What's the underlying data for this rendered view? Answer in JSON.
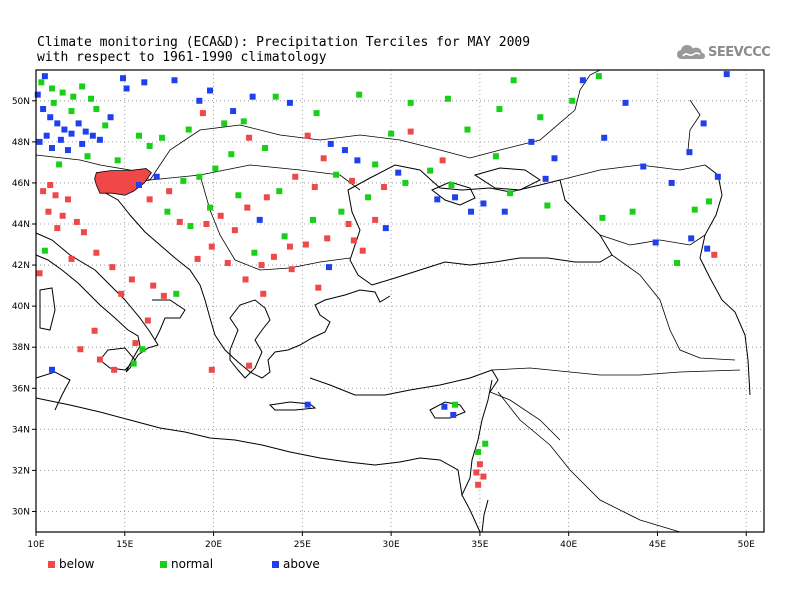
{
  "title": {
    "line1": "Climate monitoring (ECA&D): Precipitation Terciles for MAY 2009",
    "line2": "with respect to 1961-1990 climatology"
  },
  "logo": {
    "text": "SEEVCCC",
    "icon": "cloud-icon"
  },
  "map": {
    "lon_range": [
      10,
      51
    ],
    "lat_range": [
      29,
      51.5
    ],
    "x_ticks": [
      {
        "v": 10,
        "label": "10E"
      },
      {
        "v": 15,
        "label": "15E"
      },
      {
        "v": 20,
        "label": "20E"
      },
      {
        "v": 25,
        "label": "25E"
      },
      {
        "v": 30,
        "label": "30E"
      },
      {
        "v": 35,
        "label": "35E"
      },
      {
        "v": 40,
        "label": "40E"
      },
      {
        "v": 45,
        "label": "45E"
      },
      {
        "v": 50,
        "label": "50E"
      }
    ],
    "y_ticks": [
      {
        "v": 30,
        "label": "30N"
      },
      {
        "v": 32,
        "label": "32N"
      },
      {
        "v": 34,
        "label": "34N"
      },
      {
        "v": 36,
        "label": "36N"
      },
      {
        "v": 38,
        "label": "38N"
      },
      {
        "v": 40,
        "label": "40N"
      },
      {
        "v": 42,
        "label": "42N"
      },
      {
        "v": 44,
        "label": "44N"
      },
      {
        "v": 46,
        "label": "46N"
      },
      {
        "v": 48,
        "label": "48N"
      },
      {
        "v": 50,
        "label": "50N"
      }
    ],
    "grid": "dotted",
    "categories": {
      "below": "#f04848",
      "normal": "#18d018",
      "above": "#2040f0"
    },
    "stations": [
      {
        "lon": 10.1,
        "lat": 50.3,
        "c": "above"
      },
      {
        "lon": 10.4,
        "lat": 49.6,
        "c": "above"
      },
      {
        "lon": 10.8,
        "lat": 49.2,
        "c": "above"
      },
      {
        "lon": 11.2,
        "lat": 48.9,
        "c": "above"
      },
      {
        "lon": 11.6,
        "lat": 48.6,
        "c": "above"
      },
      {
        "lon": 12.0,
        "lat": 48.4,
        "c": "above"
      },
      {
        "lon": 10.6,
        "lat": 48.3,
        "c": "above"
      },
      {
        "lon": 11.4,
        "lat": 48.1,
        "c": "above"
      },
      {
        "lon": 10.2,
        "lat": 48.0,
        "c": "above"
      },
      {
        "lon": 12.4,
        "lat": 48.9,
        "c": "above"
      },
      {
        "lon": 12.8,
        "lat": 48.5,
        "c": "above"
      },
      {
        "lon": 13.2,
        "lat": 48.3,
        "c": "above"
      },
      {
        "lon": 10.9,
        "lat": 47.7,
        "c": "above"
      },
      {
        "lon": 11.8,
        "lat": 47.6,
        "c": "above"
      },
      {
        "lon": 12.6,
        "lat": 47.9,
        "c": "above"
      },
      {
        "lon": 13.6,
        "lat": 48.1,
        "c": "above"
      },
      {
        "lon": 14.2,
        "lat": 49.2,
        "c": "above"
      },
      {
        "lon": 15.1,
        "lat": 50.6,
        "c": "above"
      },
      {
        "lon": 16.1,
        "lat": 50.9,
        "c": "above"
      },
      {
        "lon": 10.5,
        "lat": 51.2,
        "c": "above"
      },
      {
        "lon": 14.9,
        "lat": 51.1,
        "c": "above"
      },
      {
        "lon": 16.8,
        "lat": 46.3,
        "c": "above"
      },
      {
        "lon": 17.8,
        "lat": 51.0,
        "c": "above"
      },
      {
        "lon": 19.2,
        "lat": 50.0,
        "c": "above"
      },
      {
        "lon": 21.1,
        "lat": 49.5,
        "c": "above"
      },
      {
        "lon": 22.2,
        "lat": 50.2,
        "c": "above"
      },
      {
        "lon": 24.3,
        "lat": 49.9,
        "c": "above"
      },
      {
        "lon": 26.6,
        "lat": 47.9,
        "c": "above"
      },
      {
        "lon": 27.4,
        "lat": 47.6,
        "c": "above"
      },
      {
        "lon": 33.6,
        "lat": 45.3,
        "c": "above"
      },
      {
        "lon": 34.5,
        "lat": 44.6,
        "c": "above"
      },
      {
        "lon": 35.2,
        "lat": 45.0,
        "c": "above"
      },
      {
        "lon": 37.9,
        "lat": 48.0,
        "c": "above"
      },
      {
        "lon": 38.7,
        "lat": 46.2,
        "c": "above"
      },
      {
        "lon": 39.2,
        "lat": 47.2,
        "c": "above"
      },
      {
        "lon": 40.8,
        "lat": 51.0,
        "c": "above"
      },
      {
        "lon": 42.0,
        "lat": 48.2,
        "c": "above"
      },
      {
        "lon": 43.2,
        "lat": 49.9,
        "c": "above"
      },
      {
        "lon": 44.2,
        "lat": 46.8,
        "c": "above"
      },
      {
        "lon": 45.8,
        "lat": 46.0,
        "c": "above"
      },
      {
        "lon": 46.8,
        "lat": 47.5,
        "c": "above"
      },
      {
        "lon": 47.6,
        "lat": 48.9,
        "c": "above"
      },
      {
        "lon": 48.4,
        "lat": 46.3,
        "c": "above"
      },
      {
        "lon": 48.9,
        "lat": 51.3,
        "c": "above"
      },
      {
        "lon": 44.9,
        "lat": 43.1,
        "c": "above"
      },
      {
        "lon": 46.9,
        "lat": 43.3,
        "c": "above"
      },
      {
        "lon": 47.8,
        "lat": 42.8,
        "c": "above"
      },
      {
        "lon": 30.4,
        "lat": 46.5,
        "c": "above"
      },
      {
        "lon": 32.6,
        "lat": 45.2,
        "c": "above"
      },
      {
        "lon": 36.4,
        "lat": 44.6,
        "c": "above"
      },
      {
        "lon": 28.1,
        "lat": 47.1,
        "c": "above"
      },
      {
        "lon": 19.8,
        "lat": 50.5,
        "c": "above"
      },
      {
        "lon": 15.8,
        "lat": 45.9,
        "c": "above"
      },
      {
        "lon": 29.7,
        "lat": 43.8,
        "c": "above"
      },
      {
        "lon": 26.5,
        "lat": 41.9,
        "c": "above"
      },
      {
        "lon": 22.6,
        "lat": 44.2,
        "c": "above"
      },
      {
        "lon": 25.3,
        "lat": 35.2,
        "c": "above"
      },
      {
        "lon": 33.0,
        "lat": 35.1,
        "c": "above"
      },
      {
        "lon": 33.5,
        "lat": 34.7,
        "c": "above"
      },
      {
        "lon": 10.9,
        "lat": 36.9,
        "c": "above"
      },
      {
        "lon": 10.3,
        "lat": 50.9,
        "c": "normal"
      },
      {
        "lon": 10.9,
        "lat": 50.6,
        "c": "normal"
      },
      {
        "lon": 11.5,
        "lat": 50.4,
        "c": "normal"
      },
      {
        "lon": 12.1,
        "lat": 50.2,
        "c": "normal"
      },
      {
        "lon": 12.6,
        "lat": 50.7,
        "c": "normal"
      },
      {
        "lon": 13.1,
        "lat": 50.1,
        "c": "normal"
      },
      {
        "lon": 11.0,
        "lat": 49.9,
        "c": "normal"
      },
      {
        "lon": 12.0,
        "lat": 49.5,
        "c": "normal"
      },
      {
        "lon": 13.4,
        "lat": 49.6,
        "c": "normal"
      },
      {
        "lon": 13.9,
        "lat": 48.8,
        "c": "normal"
      },
      {
        "lon": 12.9,
        "lat": 47.3,
        "c": "normal"
      },
      {
        "lon": 11.3,
        "lat": 46.9,
        "c": "normal"
      },
      {
        "lon": 14.6,
        "lat": 47.1,
        "c": "normal"
      },
      {
        "lon": 15.8,
        "lat": 48.3,
        "c": "normal"
      },
      {
        "lon": 16.4,
        "lat": 47.8,
        "c": "normal"
      },
      {
        "lon": 17.1,
        "lat": 48.2,
        "c": "normal"
      },
      {
        "lon": 18.6,
        "lat": 48.6,
        "c": "normal"
      },
      {
        "lon": 18.3,
        "lat": 46.1,
        "c": "normal"
      },
      {
        "lon": 19.2,
        "lat": 46.3,
        "c": "normal"
      },
      {
        "lon": 20.1,
        "lat": 46.7,
        "c": "normal"
      },
      {
        "lon": 21.0,
        "lat": 47.4,
        "c": "normal"
      },
      {
        "lon": 22.9,
        "lat": 47.7,
        "c": "normal"
      },
      {
        "lon": 20.6,
        "lat": 48.9,
        "c": "normal"
      },
      {
        "lon": 21.7,
        "lat": 49.0,
        "c": "normal"
      },
      {
        "lon": 23.5,
        "lat": 50.2,
        "c": "normal"
      },
      {
        "lon": 25.8,
        "lat": 49.4,
        "c": "normal"
      },
      {
        "lon": 28.2,
        "lat": 50.3,
        "c": "normal"
      },
      {
        "lon": 30.0,
        "lat": 48.4,
        "c": "normal"
      },
      {
        "lon": 31.1,
        "lat": 49.9,
        "c": "normal"
      },
      {
        "lon": 33.2,
        "lat": 50.1,
        "c": "normal"
      },
      {
        "lon": 34.3,
        "lat": 48.6,
        "c": "normal"
      },
      {
        "lon": 36.1,
        "lat": 49.6,
        "c": "normal"
      },
      {
        "lon": 36.9,
        "lat": 51.0,
        "c": "normal"
      },
      {
        "lon": 38.4,
        "lat": 49.2,
        "c": "normal"
      },
      {
        "lon": 40.2,
        "lat": 50.0,
        "c": "normal"
      },
      {
        "lon": 41.7,
        "lat": 51.2,
        "c": "normal"
      },
      {
        "lon": 35.9,
        "lat": 47.3,
        "c": "normal"
      },
      {
        "lon": 32.2,
        "lat": 46.6,
        "c": "normal"
      },
      {
        "lon": 30.8,
        "lat": 46.0,
        "c": "normal"
      },
      {
        "lon": 28.7,
        "lat": 45.3,
        "c": "normal"
      },
      {
        "lon": 27.2,
        "lat": 44.6,
        "c": "normal"
      },
      {
        "lon": 25.6,
        "lat": 44.2,
        "c": "normal"
      },
      {
        "lon": 24.0,
        "lat": 43.4,
        "c": "normal"
      },
      {
        "lon": 22.3,
        "lat": 42.6,
        "c": "normal"
      },
      {
        "lon": 21.4,
        "lat": 45.4,
        "c": "normal"
      },
      {
        "lon": 19.8,
        "lat": 44.8,
        "c": "normal"
      },
      {
        "lon": 18.7,
        "lat": 43.9,
        "c": "normal"
      },
      {
        "lon": 17.4,
        "lat": 44.6,
        "c": "normal"
      },
      {
        "lon": 23.7,
        "lat": 45.6,
        "c": "normal"
      },
      {
        "lon": 26.9,
        "lat": 46.4,
        "c": "normal"
      },
      {
        "lon": 29.1,
        "lat": 46.9,
        "c": "normal"
      },
      {
        "lon": 33.4,
        "lat": 45.9,
        "c": "normal"
      },
      {
        "lon": 36.7,
        "lat": 45.5,
        "c": "normal"
      },
      {
        "lon": 38.8,
        "lat": 44.9,
        "c": "normal"
      },
      {
        "lon": 41.9,
        "lat": 44.3,
        "c": "normal"
      },
      {
        "lon": 43.6,
        "lat": 44.6,
        "c": "normal"
      },
      {
        "lon": 47.1,
        "lat": 44.7,
        "c": "normal"
      },
      {
        "lon": 47.9,
        "lat": 45.1,
        "c": "normal"
      },
      {
        "lon": 46.1,
        "lat": 42.1,
        "c": "normal"
      },
      {
        "lon": 16.0,
        "lat": 37.9,
        "c": "normal"
      },
      {
        "lon": 15.5,
        "lat": 37.2,
        "c": "normal"
      },
      {
        "lon": 33.6,
        "lat": 35.2,
        "c": "normal"
      },
      {
        "lon": 34.9,
        "lat": 32.9,
        "c": "normal"
      },
      {
        "lon": 35.3,
        "lat": 33.3,
        "c": "normal"
      },
      {
        "lon": 17.9,
        "lat": 40.6,
        "c": "normal"
      },
      {
        "lon": 10.5,
        "lat": 42.7,
        "c": "normal"
      },
      {
        "lon": 10.4,
        "lat": 45.6,
        "c": "below"
      },
      {
        "lon": 11.1,
        "lat": 45.4,
        "c": "below"
      },
      {
        "lon": 11.8,
        "lat": 45.2,
        "c": "below"
      },
      {
        "lon": 10.7,
        "lat": 44.6,
        "c": "below"
      },
      {
        "lon": 11.5,
        "lat": 44.4,
        "c": "below"
      },
      {
        "lon": 12.3,
        "lat": 44.1,
        "c": "below"
      },
      {
        "lon": 12.7,
        "lat": 43.6,
        "c": "below"
      },
      {
        "lon": 11.2,
        "lat": 43.8,
        "c": "below"
      },
      {
        "lon": 12.0,
        "lat": 42.3,
        "c": "below"
      },
      {
        "lon": 13.4,
        "lat": 42.6,
        "c": "below"
      },
      {
        "lon": 14.3,
        "lat": 41.9,
        "c": "below"
      },
      {
        "lon": 15.4,
        "lat": 41.3,
        "c": "below"
      },
      {
        "lon": 16.6,
        "lat": 41.0,
        "c": "below"
      },
      {
        "lon": 17.2,
        "lat": 40.5,
        "c": "below"
      },
      {
        "lon": 14.8,
        "lat": 40.6,
        "c": "below"
      },
      {
        "lon": 16.3,
        "lat": 39.3,
        "c": "below"
      },
      {
        "lon": 15.6,
        "lat": 38.2,
        "c": "below"
      },
      {
        "lon": 12.5,
        "lat": 37.9,
        "c": "below"
      },
      {
        "lon": 13.6,
        "lat": 37.4,
        "c": "below"
      },
      {
        "lon": 14.4,
        "lat": 36.9,
        "c": "below"
      },
      {
        "lon": 13.3,
        "lat": 38.8,
        "c": "below"
      },
      {
        "lon": 10.2,
        "lat": 41.6,
        "c": "below"
      },
      {
        "lon": 14.3,
        "lat": 45.7,
        "c": "below"
      },
      {
        "lon": 15.1,
        "lat": 46.1,
        "c": "below"
      },
      {
        "lon": 16.4,
        "lat": 45.2,
        "c": "below"
      },
      {
        "lon": 17.5,
        "lat": 45.6,
        "c": "below"
      },
      {
        "lon": 18.1,
        "lat": 44.1,
        "c": "below"
      },
      {
        "lon": 19.6,
        "lat": 44.0,
        "c": "below"
      },
      {
        "lon": 20.4,
        "lat": 44.4,
        "c": "below"
      },
      {
        "lon": 21.2,
        "lat": 43.7,
        "c": "below"
      },
      {
        "lon": 21.9,
        "lat": 44.8,
        "c": "below"
      },
      {
        "lon": 19.9,
        "lat": 42.9,
        "c": "below"
      },
      {
        "lon": 19.1,
        "lat": 42.3,
        "c": "below"
      },
      {
        "lon": 20.8,
        "lat": 42.1,
        "c": "below"
      },
      {
        "lon": 22.7,
        "lat": 42.0,
        "c": "below"
      },
      {
        "lon": 23.4,
        "lat": 42.4,
        "c": "below"
      },
      {
        "lon": 24.3,
        "lat": 42.9,
        "c": "below"
      },
      {
        "lon": 25.2,
        "lat": 43.0,
        "c": "below"
      },
      {
        "lon": 26.4,
        "lat": 43.3,
        "c": "below"
      },
      {
        "lon": 27.9,
        "lat": 43.2,
        "c": "below"
      },
      {
        "lon": 28.4,
        "lat": 42.7,
        "c": "below"
      },
      {
        "lon": 23.0,
        "lat": 45.3,
        "c": "below"
      },
      {
        "lon": 24.6,
        "lat": 46.3,
        "c": "below"
      },
      {
        "lon": 25.7,
        "lat": 45.8,
        "c": "below"
      },
      {
        "lon": 26.2,
        "lat": 47.2,
        "c": "below"
      },
      {
        "lon": 27.8,
        "lat": 46.1,
        "c": "below"
      },
      {
        "lon": 29.6,
        "lat": 45.8,
        "c": "below"
      },
      {
        "lon": 19.4,
        "lat": 49.4,
        "c": "below"
      },
      {
        "lon": 22.0,
        "lat": 48.2,
        "c": "below"
      },
      {
        "lon": 25.3,
        "lat": 48.3,
        "c": "below"
      },
      {
        "lon": 31.1,
        "lat": 48.5,
        "c": "below"
      },
      {
        "lon": 32.9,
        "lat": 47.1,
        "c": "below"
      },
      {
        "lon": 29.1,
        "lat": 44.2,
        "c": "below"
      },
      {
        "lon": 27.6,
        "lat": 44.0,
        "c": "below"
      },
      {
        "lon": 24.4,
        "lat": 41.8,
        "c": "below"
      },
      {
        "lon": 21.8,
        "lat": 41.3,
        "c": "below"
      },
      {
        "lon": 22.8,
        "lat": 40.6,
        "c": "below"
      },
      {
        "lon": 25.9,
        "lat": 40.9,
        "c": "below"
      },
      {
        "lon": 19.9,
        "lat": 36.9,
        "c": "below"
      },
      {
        "lon": 22.0,
        "lat": 37.1,
        "c": "below"
      },
      {
        "lon": 35.0,
        "lat": 32.3,
        "c": "below"
      },
      {
        "lon": 34.8,
        "lat": 31.9,
        "c": "below"
      },
      {
        "lon": 35.2,
        "lat": 31.7,
        "c": "below"
      },
      {
        "lon": 34.9,
        "lat": 31.3,
        "c": "below"
      },
      {
        "lon": 48.2,
        "lat": 42.5,
        "c": "below"
      },
      {
        "lon": 10.8,
        "lat": 45.9,
        "c": "below"
      }
    ],
    "slovenia_region_category": "below"
  },
  "legend": [
    {
      "label": "below",
      "color": "#f04848"
    },
    {
      "label": "normal",
      "color": "#18d018"
    },
    {
      "label": "above",
      "color": "#2040f0"
    }
  ]
}
